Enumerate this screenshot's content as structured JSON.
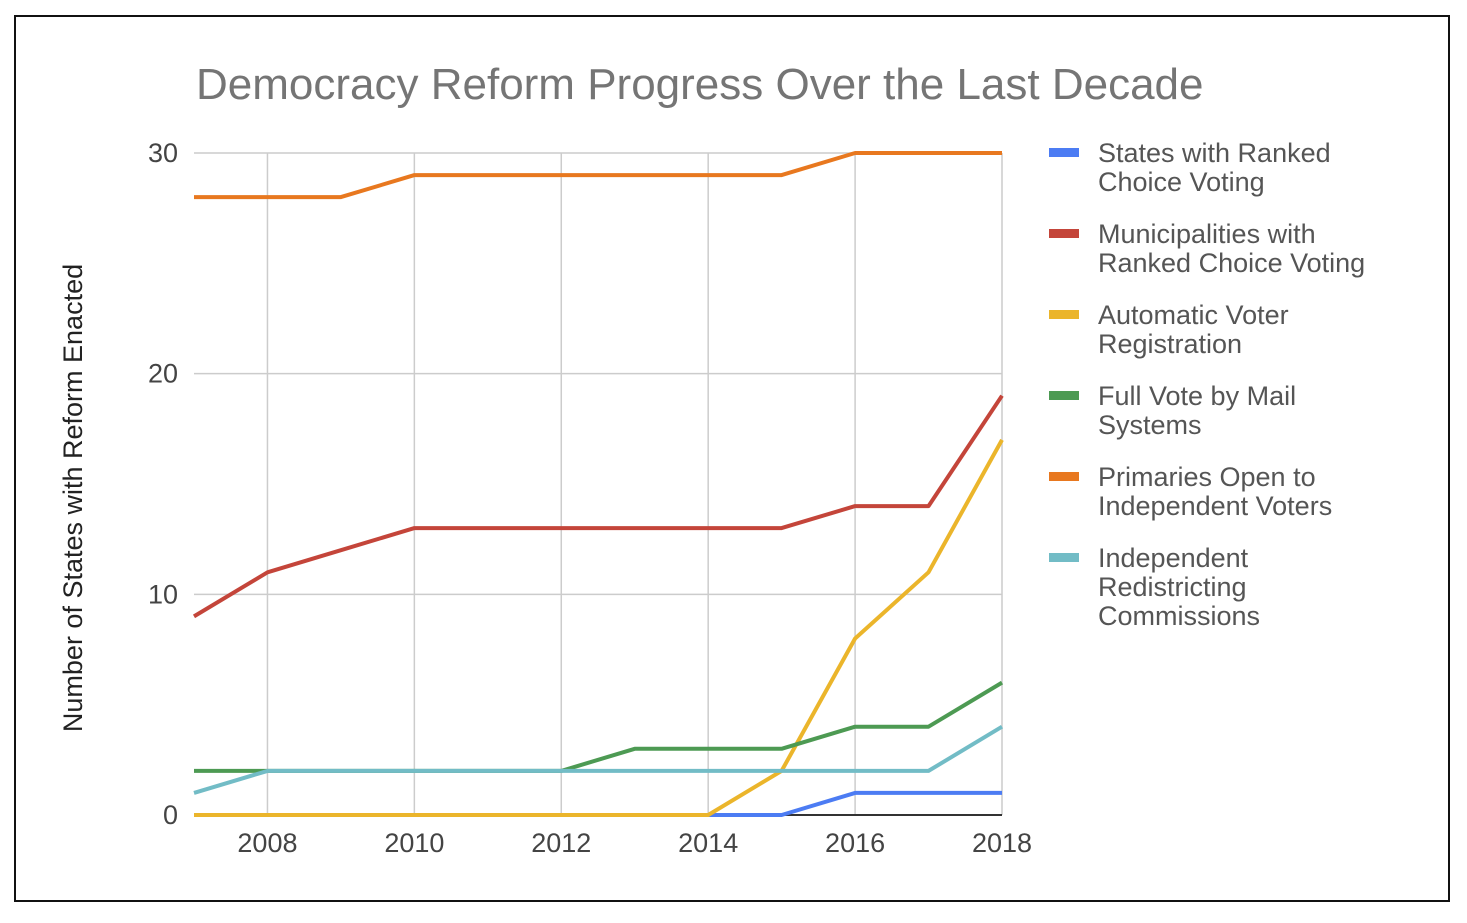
{
  "chart_data": {
    "type": "line",
    "title": "Democracy Reform Progress Over the Last Decade",
    "xlabel": "",
    "ylabel": "Number of States with Reform Enacted",
    "x": [
      2007,
      2008,
      2009,
      2010,
      2011,
      2012,
      2013,
      2014,
      2015,
      2016,
      2017,
      2018
    ],
    "xlim": [
      2007,
      2018
    ],
    "x_ticks": [
      "2008",
      "2010",
      "2012",
      "2014",
      "2016",
      "2018"
    ],
    "ylim": [
      0,
      30
    ],
    "y_ticks": [
      "0",
      "10",
      "20",
      "30"
    ],
    "grid": true,
    "legend_position": "right",
    "series": [
      {
        "name": "States with Ranked Choice Voting",
        "legend_lines": [
          "States with Ranked",
          "Choice Voting"
        ],
        "color": "#4c7cf3",
        "values": [
          0,
          0,
          0,
          0,
          0,
          0,
          0,
          0,
          0,
          1,
          1,
          1
        ]
      },
      {
        "name": "Municipalities with Ranked Choice Voting",
        "legend_lines": [
          "Municipalities with",
          "Ranked Choice Voting"
        ],
        "color": "#c4453a",
        "values": [
          9,
          11,
          12,
          13,
          13,
          13,
          13,
          13,
          13,
          14,
          14,
          19
        ]
      },
      {
        "name": "Automatic Voter Registration",
        "legend_lines": [
          "Automatic Voter",
          "Registration"
        ],
        "color": "#ebb52b",
        "values": [
          0,
          0,
          0,
          0,
          0,
          0,
          0,
          0,
          2,
          8,
          11,
          17
        ]
      },
      {
        "name": "Full Vote by Mail Systems",
        "legend_lines": [
          "Full Vote by Mail",
          "Systems"
        ],
        "color": "#4d9a53",
        "values": [
          2,
          2,
          2,
          2,
          2,
          2,
          3,
          3,
          3,
          4,
          4,
          6
        ]
      },
      {
        "name": "Primaries Open to Independent Voters",
        "legend_lines": [
          "Primaries Open to",
          "Independent Voters"
        ],
        "color": "#e8781f",
        "values": [
          28,
          28,
          28,
          29,
          29,
          29,
          29,
          29,
          29,
          30,
          30,
          30
        ]
      },
      {
        "name": "Independent Redistricting Commissions",
        "legend_lines": [
          "Independent",
          "Redistricting",
          "Commissions"
        ],
        "color": "#72bcc6",
        "values": [
          1,
          2,
          2,
          2,
          2,
          2,
          2,
          2,
          2,
          2,
          2,
          4
        ]
      }
    ]
  }
}
